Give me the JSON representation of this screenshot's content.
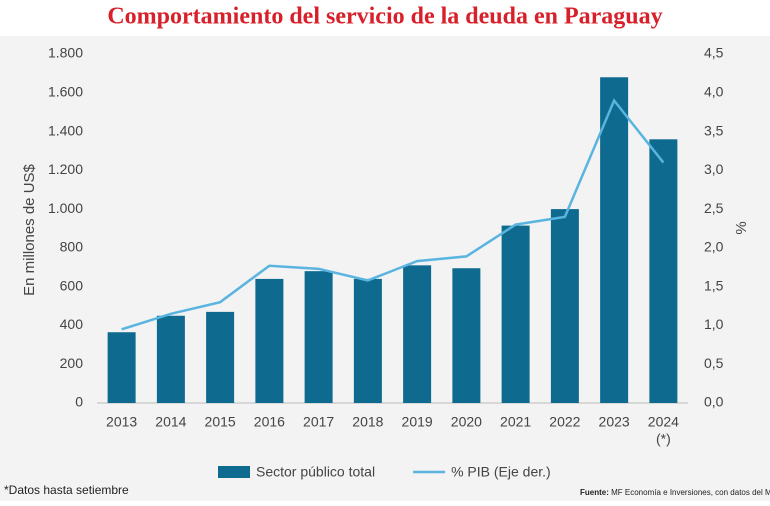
{
  "chart_data": {
    "type": "bar-line",
    "title": "Comportamiento del servicio de la deuda en Paraguay",
    "y_label": "En millones de US$",
    "y2_label": "%",
    "categories": [
      "2013",
      "2014",
      "2015",
      "2016",
      "2017",
      "2018",
      "2019",
      "2020",
      "2021",
      "2022",
      "2023",
      "2024"
    ],
    "category_note": "(*)",
    "series": [
      {
        "name": "Sector público total",
        "type": "bar",
        "color": "#0e6a8e",
        "values": [
          365,
          450,
          470,
          640,
          680,
          640,
          710,
          695,
          915,
          1000,
          1680,
          1360
        ]
      },
      {
        "name": "% PIB (Eje der.)",
        "type": "line",
        "axis": "y2",
        "color": "#5ab4e0",
        "values": [
          0.95,
          1.15,
          1.3,
          1.77,
          1.73,
          1.58,
          1.83,
          1.89,
          2.3,
          2.4,
          3.9,
          3.1
        ]
      }
    ],
    "ylim": [
      0,
      1800
    ],
    "yticks": [
      0,
      200,
      400,
      600,
      800,
      {
        "value": 1000,
        "label": "1.000"
      },
      {
        "value": 1200,
        "label": "1.200"
      },
      {
        "value": 1400,
        "label": "1.400"
      },
      {
        "value": 1600,
        "label": "1.600"
      },
      {
        "value": 1800,
        "label": "1.800"
      }
    ],
    "y2lim": [
      0,
      4.5
    ],
    "y2ticks": [
      {
        "value": 0,
        "label": "0,0"
      },
      {
        "value": 0.5,
        "label": "0,5"
      },
      {
        "value": 1,
        "label": "1,0"
      },
      {
        "value": 1.5,
        "label": "1,5"
      },
      {
        "value": 2,
        "label": "2,0"
      },
      {
        "value": 2.5,
        "label": "2,5"
      },
      {
        "value": 3,
        "label": "3,0"
      },
      {
        "value": 3.5,
        "label": "3,5"
      },
      {
        "value": 4,
        "label": "4,0"
      },
      {
        "value": 4.5,
        "label": "4,5"
      }
    ],
    "footnote": "*Datos hasta setiembre",
    "source_label": "Fuente:",
    "source": "MF Economía e Inversiones, con datos del MEF."
  }
}
